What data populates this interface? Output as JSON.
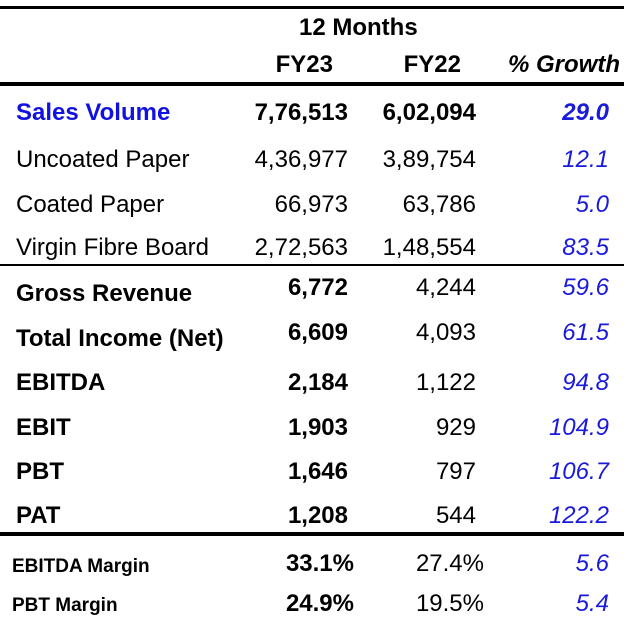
{
  "header": {
    "period": "12 Months",
    "columns": [
      "FY23",
      "FY22",
      "% Growth"
    ]
  },
  "volume_rows": [
    {
      "label": "Sales Volume",
      "fy23": "7,76,513",
      "fy22": "6,02,094",
      "growth": "29.0"
    },
    {
      "label": "Uncoated Paper",
      "fy23": "4,36,977",
      "fy22": "3,89,754",
      "growth": "12.1"
    },
    {
      "label": "Coated Paper",
      "fy23": "66,973",
      "fy22": "63,786",
      "growth": "5.0"
    },
    {
      "label": "Virgin Fibre Board",
      "fy23": "2,72,563",
      "fy22": "1,48,554",
      "growth": "83.5"
    }
  ],
  "financial_rows": [
    {
      "label": "Gross Revenue",
      "fy23": "6,772",
      "fy22": "4,244",
      "growth": "59.6"
    },
    {
      "label": "Total Income (Net)",
      "fy23": "6,609",
      "fy22": "4,093",
      "growth": "61.5"
    },
    {
      "label": "EBITDA",
      "fy23": "2,184",
      "fy22": "1,122",
      "growth": "94.8"
    },
    {
      "label": "EBIT",
      "fy23": "1,903",
      "fy22": "929",
      "growth": "104.9"
    },
    {
      "label": "PBT",
      "fy23": "1,646",
      "fy22": "797",
      "growth": "106.7"
    },
    {
      "label": "PAT",
      "fy23": "1,208",
      "fy22": "544",
      "growth": "122.2"
    }
  ],
  "margin_rows": [
    {
      "label": "EBITDA Margin",
      "fy23": "33.1%",
      "fy22": "27.4%",
      "growth": "5.6"
    },
    {
      "label": "PBT Margin",
      "fy23": "24.9%",
      "fy22": "19.5%",
      "growth": "5.4"
    }
  ],
  "colors": {
    "accent_blue": "#1212e0",
    "growth_blue": "#1a1adb"
  }
}
